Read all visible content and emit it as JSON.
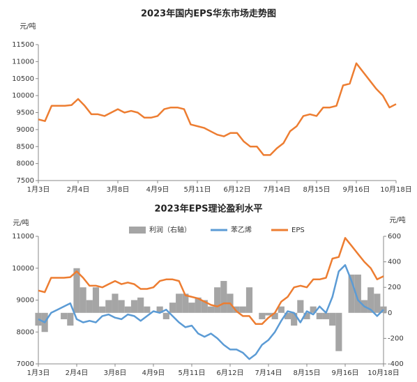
{
  "chart_data": [
    {
      "type": "line",
      "title": "2023年国内EPS华东市场走势图",
      "y_label": "元/吨",
      "categories": [
        "1月3日",
        null,
        null,
        null,
        null,
        null,
        "2月4日",
        null,
        null,
        null,
        null,
        null,
        "3月8日",
        null,
        null,
        null,
        null,
        null,
        "4月9日",
        null,
        null,
        null,
        null,
        null,
        "5月11日",
        null,
        null,
        null,
        null,
        null,
        "6月12日",
        null,
        null,
        null,
        null,
        null,
        "7月14日",
        null,
        null,
        null,
        null,
        null,
        "8月15日",
        null,
        null,
        null,
        null,
        null,
        "9月16日",
        null,
        null,
        null,
        null,
        null,
        "10月18日"
      ],
      "ylim": [
        7500,
        11500
      ],
      "yticks": [
        7500,
        8000,
        8500,
        9000,
        9500,
        10000,
        10500,
        11000,
        11500
      ],
      "series": [
        {
          "name": "EPS",
          "color": "#ED7D31",
          "values": [
            9300,
            9250,
            9700,
            9700,
            9700,
            9720,
            9900,
            9700,
            9450,
            9450,
            9400,
            9500,
            9600,
            9500,
            9550,
            9500,
            9350,
            9350,
            9400,
            9600,
            9650,
            9650,
            9600,
            9150,
            9100,
            9050,
            8950,
            8850,
            8800,
            8900,
            8900,
            8650,
            8500,
            8500,
            8250,
            8250,
            8450,
            8600,
            8950,
            9100,
            9400,
            9450,
            9400,
            9650,
            9650,
            9700,
            10300,
            10350,
            10950,
            10700,
            10450,
            10200,
            10000,
            9650,
            9750
          ]
        }
      ]
    },
    {
      "type": "combo",
      "title": "2023年EPS理论盈利水平",
      "y_label": "元/吨",
      "y2_label": "元/吨",
      "categories": [
        "1月3日",
        null,
        null,
        null,
        null,
        null,
        "2月4日",
        null,
        null,
        null,
        null,
        null,
        "3月8日",
        null,
        null,
        null,
        null,
        null,
        "4月9日",
        null,
        null,
        null,
        null,
        null,
        "5月11日",
        null,
        null,
        null,
        null,
        null,
        "6月12日",
        null,
        null,
        null,
        null,
        null,
        "7月14日",
        null,
        null,
        null,
        null,
        null,
        "8月15日",
        null,
        null,
        null,
        null,
        null,
        "9月16日",
        null,
        null,
        null,
        null,
        null,
        "10月18日"
      ],
      "ylim": [
        7000,
        11000
      ],
      "yticks": [
        7000,
        8000,
        9000,
        10000,
        11000
      ],
      "y2lim": [
        -400,
        600
      ],
      "y2ticks": [
        -400,
        -200,
        0,
        200,
        400,
        600
      ],
      "series": [
        {
          "name": "利润（右轴）",
          "type": "bar",
          "axis": "y2",
          "color": "#A5A5A5",
          "values": [
            -100,
            -150,
            0,
            0,
            -50,
            -100,
            350,
            200,
            100,
            200,
            50,
            100,
            150,
            100,
            50,
            100,
            120,
            50,
            0,
            50,
            -50,
            80,
            150,
            150,
            80,
            120,
            100,
            50,
            200,
            250,
            150,
            50,
            50,
            200,
            0,
            -50,
            -20,
            -50,
            50,
            -50,
            -100,
            100,
            -50,
            50,
            -50,
            -50,
            -100,
            -300,
            0,
            300,
            300,
            100,
            200,
            150,
            50
          ]
        },
        {
          "name": "苯乙烯",
          "type": "line",
          "color": "#5B9BD5",
          "values": [
            8400,
            8300,
            8600,
            8700,
            8800,
            8900,
            8400,
            8300,
            8350,
            8300,
            8500,
            8550,
            8450,
            8400,
            8550,
            8500,
            8350,
            8500,
            8650,
            8600,
            8700,
            8500,
            8300,
            8150,
            8200,
            7950,
            7850,
            7950,
            7800,
            7600,
            7450,
            7450,
            7350,
            7150,
            7300,
            7600,
            7750,
            8000,
            8350,
            8650,
            8600,
            8300,
            8650,
            8550,
            8800,
            8600,
            9100,
            9900,
            10100,
            9600,
            9000,
            8800,
            8700,
            8500,
            8700
          ]
        },
        {
          "name": "EPS",
          "type": "line",
          "color": "#ED7D31",
          "values": [
            9300,
            9250,
            9700,
            9700,
            9700,
            9720,
            9900,
            9700,
            9450,
            9450,
            9400,
            9500,
            9600,
            9500,
            9550,
            9500,
            9350,
            9350,
            9400,
            9600,
            9650,
            9650,
            9600,
            9150,
            9100,
            9050,
            8950,
            8850,
            8800,
            8900,
            8900,
            8650,
            8500,
            8500,
            8250,
            8250,
            8450,
            8600,
            8950,
            9100,
            9400,
            9450,
            9400,
            9650,
            9650,
            9700,
            10300,
            10350,
            10950,
            10700,
            10450,
            10200,
            10000,
            9650,
            9750
          ]
        }
      ]
    }
  ]
}
